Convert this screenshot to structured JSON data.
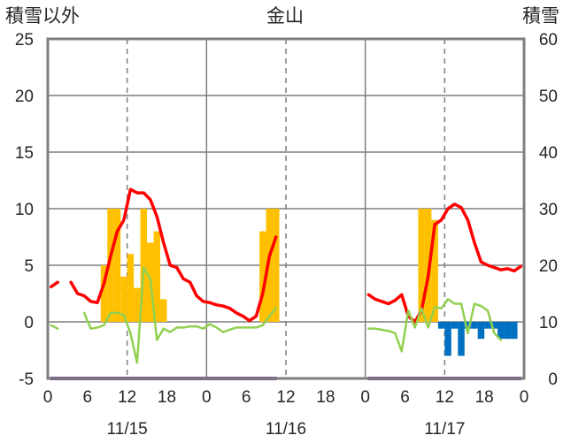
{
  "chart_data": {
    "type": "bar+line",
    "title": "金山",
    "left_axis_label": "積雪以外",
    "right_axis_label": "積雪",
    "left_ylim": [
      -5,
      25
    ],
    "left_yticks": [
      "-5",
      "0",
      "5",
      "10",
      "15",
      "20",
      "25"
    ],
    "right_ylim": [
      0,
      60
    ],
    "right_yticks": [
      "0",
      "10",
      "20",
      "30",
      "40",
      "50",
      "60"
    ],
    "x_range_hours": [
      0,
      72
    ],
    "x_tick_labels": [
      "0",
      "6",
      "12",
      "18",
      "0",
      "6",
      "12",
      "18",
      "0",
      "6",
      "12",
      "18",
      "0"
    ],
    "date_labels": [
      "11/15",
      "11/16",
      "11/17"
    ],
    "grid": "vertical dashed every 12h, solid at day boundaries, horizontal at each y tick",
    "colors": {
      "precip_bar": "#FFC000",
      "snow_depth": "#FF0000",
      "temperature": "#92D050",
      "snow_change_bar": "#0070C0",
      "sunshine": "#7030A0",
      "grid": "#7F7F7F"
    },
    "series": [
      {
        "kind": "bar",
        "color": "#FFC000",
        "axis": "left",
        "points": [
          {
            "x": 8,
            "y": 5
          },
          {
            "x": 9,
            "y": 10
          },
          {
            "x": 10,
            "y": 10
          },
          {
            "x": 11,
            "y": 4
          },
          {
            "x": 12,
            "y": 6
          },
          {
            "x": 13,
            "y": 3
          },
          {
            "x": 14,
            "y": 10
          },
          {
            "x": 15,
            "y": 7
          },
          {
            "x": 16,
            "y": 8
          },
          {
            "x": 17,
            "y": 2
          },
          {
            "x": 32,
            "y": 8
          },
          {
            "x": 33,
            "y": 10
          },
          {
            "x": 34,
            "y": 10
          },
          {
            "x": 56,
            "y": 10
          },
          {
            "x": 57,
            "y": 10
          },
          {
            "x": 58,
            "y": 9
          }
        ]
      },
      {
        "kind": "bar",
        "color": "#0070C0",
        "axis": "left",
        "points": [
          {
            "x": 59,
            "y": -0.6
          },
          {
            "x": 60,
            "y": -3.0
          },
          {
            "x": 61,
            "y": -0.6
          },
          {
            "x": 62,
            "y": -3.0
          },
          {
            "x": 63,
            "y": -0.6
          },
          {
            "x": 64,
            "y": -0.6
          },
          {
            "x": 65,
            "y": -1.5
          },
          {
            "x": 66,
            "y": -0.6
          },
          {
            "x": 67,
            "y": -0.6
          },
          {
            "x": 68,
            "y": -1.5
          },
          {
            "x": 69,
            "y": -1.5
          },
          {
            "x": 70,
            "y": -1.5
          }
        ]
      },
      {
        "kind": "line",
        "color": "#FF0000",
        "axis": "right",
        "segments": [
          [
            [
              0,
              16.2
            ],
            [
              1,
              17.0
            ]
          ],
          [
            [
              3,
              17.0
            ],
            [
              4,
              15.0
            ],
            [
              5,
              14.6
            ],
            [
              6,
              13.6
            ],
            [
              7,
              13.4
            ],
            [
              8,
              16.8
            ],
            [
              9,
              21.6
            ],
            [
              10,
              26.0
            ],
            [
              11,
              28.0
            ],
            [
              12,
              33.4
            ],
            [
              13,
              32.8
            ],
            [
              14,
              32.8
            ],
            [
              15,
              31.6
            ],
            [
              16,
              28.6
            ],
            [
              17,
              24.0
            ],
            [
              18,
              20.0
            ],
            [
              19,
              19.6
            ],
            [
              20,
              17.6
            ],
            [
              21,
              17.0
            ],
            [
              22,
              14.6
            ],
            [
              23,
              13.6
            ],
            [
              24,
              13.4
            ],
            [
              25,
              13.0
            ],
            [
              26,
              12.8
            ],
            [
              27,
              12.4
            ],
            [
              28,
              11.6
            ],
            [
              29,
              11.0
            ],
            [
              30,
              10.2
            ],
            [
              31,
              11.0
            ],
            [
              32,
              15.0
            ],
            [
              33,
              21.6
            ],
            [
              34,
              25.0
            ]
          ],
          [
            [
              48,
              14.8
            ],
            [
              49,
              14.0
            ],
            [
              50,
              13.6
            ],
            [
              51,
              13.2
            ],
            [
              52,
              13.8
            ],
            [
              53,
              14.8
            ],
            [
              54,
              11.0
            ],
            [
              55,
              10.0
            ],
            [
              56,
              12.0
            ],
            [
              57,
              18.0
            ],
            [
              58,
              27.2
            ],
            [
              59,
              28.0
            ],
            [
              60,
              30.0
            ],
            [
              61,
              30.8
            ],
            [
              62,
              30.2
            ],
            [
              63,
              28.0
            ],
            [
              64,
              24.0
            ],
            [
              65,
              20.6
            ],
            [
              66,
              20.0
            ],
            [
              67,
              19.6
            ],
            [
              68,
              19.2
            ],
            [
              69,
              19.4
            ],
            [
              70,
              19.0
            ],
            [
              71,
              19.8
            ]
          ]
        ]
      },
      {
        "kind": "line",
        "color": "#92D050",
        "axis": "left",
        "segments": [
          [
            [
              0,
              -0.3
            ],
            [
              1,
              -0.6
            ]
          ],
          [
            [
              5,
              0.8
            ],
            [
              6,
              -0.6
            ],
            [
              7,
              -0.5
            ],
            [
              8,
              -0.3
            ],
            [
              9,
              0.8
            ],
            [
              10,
              0.8
            ],
            [
              11,
              0.6
            ],
            [
              12,
              -1.0
            ],
            [
              13,
              -3.6
            ],
            [
              14,
              4.8
            ],
            [
              15,
              3.8
            ],
            [
              16,
              -1.6
            ],
            [
              17,
              -0.6
            ],
            [
              18,
              -0.9
            ],
            [
              19,
              -0.5
            ],
            [
              20,
              -0.5
            ],
            [
              21,
              -0.4
            ],
            [
              22,
              -0.4
            ],
            [
              23,
              -0.6
            ],
            [
              24,
              -0.2
            ],
            [
              25,
              -0.5
            ],
            [
              26,
              -0.9
            ],
            [
              27,
              -0.7
            ],
            [
              28,
              -0.5
            ],
            [
              29,
              -0.5
            ],
            [
              30,
              -0.5
            ],
            [
              31,
              -0.5
            ],
            [
              32,
              -0.3
            ],
            [
              33,
              0.5
            ],
            [
              34,
              1.2
            ]
          ],
          [
            [
              48,
              -0.6
            ],
            [
              49,
              -0.6
            ],
            [
              50,
              -0.7
            ],
            [
              51,
              -0.8
            ],
            [
              52,
              -1.0
            ],
            [
              53,
              -2.6
            ],
            [
              54,
              1.0
            ],
            [
              55,
              -0.5
            ],
            [
              56,
              1.2
            ],
            [
              57,
              -0.5
            ],
            [
              58,
              1.3
            ],
            [
              59,
              1.2
            ],
            [
              60,
              2.0
            ],
            [
              61,
              1.6
            ],
            [
              62,
              1.6
            ],
            [
              63,
              -1.0
            ],
            [
              64,
              1.6
            ],
            [
              65,
              1.4
            ],
            [
              66,
              1.0
            ],
            [
              67,
              -1.0
            ],
            [
              68,
              -1.6
            ]
          ]
        ]
      },
      {
        "kind": "line",
        "color": "#7030A0",
        "axis": "left",
        "segments": [
          [
            [
              0,
              -5
            ],
            [
              34,
              -5
            ]
          ],
          [
            [
              48,
              -5
            ],
            [
              71,
              -5
            ]
          ]
        ]
      }
    ]
  }
}
